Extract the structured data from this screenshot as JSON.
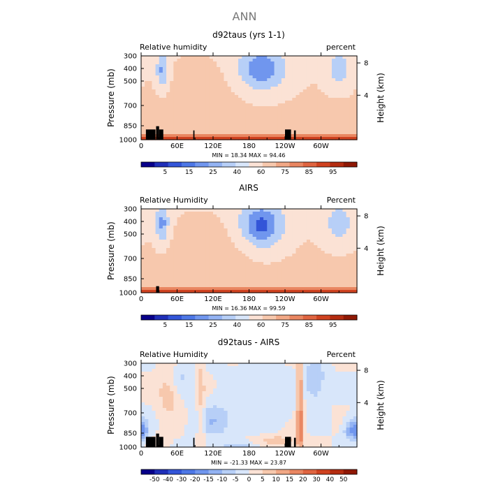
{
  "page_title": "ANN",
  "chart_data": [
    {
      "type": "heatmap",
      "title": "d92taus (yrs 1-1)",
      "left_label": "Relative humidity",
      "right_label": "percent",
      "ylabel": "Pressure (mb)",
      "y2label": "Height (km)",
      "pressure_ticks": [
        "300",
        "400",
        "500",
        "700",
        "850",
        "1000"
      ],
      "height_ticks": [
        "8",
        "4"
      ],
      "lon_ticks": [
        "0",
        "60E",
        "120E",
        "180",
        "120W",
        "60W"
      ],
      "stats": "MIN =   18.34   MAX =   94.46",
      "colorbar_ticks": [
        "5",
        "15",
        "25",
        "40",
        "60",
        "75",
        "85",
        "95"
      ],
      "colorbar_colors": [
        "#08008a",
        "#1f2fb8",
        "#3355d8",
        "#4d77e6",
        "#7096ee",
        "#93b3f3",
        "#b7cff7",
        "#d8e6fa",
        "#fbe2d5",
        "#f7c8ad",
        "#f1a886",
        "#e98661",
        "#df6440",
        "#cf4220",
        "#b42c10",
        "#8f1805"
      ],
      "range": [
        18.34,
        94.46
      ],
      "features": [
        {
          "lon": 35,
          "p": 420,
          "amp": -38,
          "wlon": 8,
          "wp": 110
        },
        {
          "lon": 200,
          "p": 410,
          "amp": -45,
          "wlon": 32,
          "wp": 140
        },
        {
          "lon": 330,
          "p": 410,
          "amp": -30,
          "wlon": 16,
          "wp": 110
        },
        {
          "lon": 110,
          "p": 560,
          "amp": 8,
          "wlon": 45,
          "wp": 180
        }
      ],
      "land_blocks": [
        [
          8,
          24,
          890
        ],
        [
          25,
          30,
          855
        ],
        [
          30,
          37,
          890
        ],
        [
          87,
          89,
          900
        ],
        [
          240,
          250,
          890
        ],
        [
          255,
          258,
          900
        ]
      ]
    },
    {
      "type": "heatmap",
      "title": "AIRS",
      "left_label": "Relative Humidity",
      "right_label": "Percent",
      "ylabel": "Pressure (mb)",
      "y2label": "Height (km)",
      "pressure_ticks": [
        "300",
        "400",
        "500",
        "700",
        "850",
        "1000"
      ],
      "height_ticks": [
        "8",
        "4"
      ],
      "lon_ticks": [
        "0",
        "60E",
        "120E",
        "180",
        "120W",
        "60W"
      ],
      "stats": "MIN =   16.36   MAX =   99.59",
      "colorbar_ticks": [
        "5",
        "15",
        "25",
        "40",
        "60",
        "75",
        "85",
        "95"
      ],
      "colorbar_colors": [
        "#08008a",
        "#1f2fb8",
        "#3355d8",
        "#4d77e6",
        "#7096ee",
        "#93b3f3",
        "#b7cff7",
        "#d8e6fa",
        "#fbe2d5",
        "#f7c8ad",
        "#f1a886",
        "#e98661",
        "#df6440",
        "#cf4220",
        "#b42c10",
        "#8f1805"
      ],
      "range": [
        16.36,
        99.59
      ],
      "features": [
        {
          "lon": 35,
          "p": 420,
          "amp": -40,
          "wlon": 9,
          "wp": 120
        },
        {
          "lon": 200,
          "p": 440,
          "amp": -50,
          "wlon": 30,
          "wp": 150
        },
        {
          "lon": 330,
          "p": 420,
          "amp": -28,
          "wlon": 20,
          "wp": 130
        },
        {
          "lon": 130,
          "p": 620,
          "amp": 10,
          "wlon": 50,
          "wp": 180
        }
      ],
      "land_blocks": [
        [
          25,
          30,
          930
        ]
      ]
    },
    {
      "type": "heatmap",
      "title": "d92taus - AIRS",
      "left_label": "Relative Humidity",
      "right_label": "Percent",
      "ylabel": "Pressure (mb)",
      "y2label": "Height (km)",
      "pressure_ticks": [
        "300",
        "400",
        "500",
        "700",
        "850",
        "1000"
      ],
      "height_ticks": [
        "8",
        "4"
      ],
      "lon_ticks": [
        "0",
        "60E",
        "120E",
        "180",
        "120W",
        "60W"
      ],
      "stats": "MIN =  -21.33   MAX =   23.87",
      "colorbar_ticks": [
        "-50",
        "-40",
        "-30",
        "-20",
        "-15",
        "-10",
        "-5",
        "0",
        "5",
        "10",
        "15",
        "20",
        "30",
        "40",
        "50"
      ],
      "colorbar_colors": [
        "#08008a",
        "#1f2fb8",
        "#3355d8",
        "#4d77e6",
        "#7096ee",
        "#93b3f3",
        "#b7cff7",
        "#d8e6fa",
        "#fbe2d5",
        "#f7c8ad",
        "#f1a886",
        "#e98661",
        "#df6440",
        "#cf4220",
        "#b42c10",
        "#8f1805"
      ],
      "range": [
        -21.33,
        23.87
      ],
      "features": [
        {
          "lon": 265,
          "p": 700,
          "amp": 18,
          "wlon": 4,
          "wp": 400
        },
        {
          "lon": 100,
          "p": 650,
          "amp": 8,
          "wlon": 5,
          "wp": 350
        },
        {
          "lon": 45,
          "p": 500,
          "amp": 8,
          "wlon": 12,
          "wp": 200
        },
        {
          "lon": 60,
          "p": 400,
          "amp": -7,
          "wlon": 15,
          "wp": 80
        },
        {
          "lon": 120,
          "p": 760,
          "amp": -9,
          "wlon": 22,
          "wp": 90
        },
        {
          "lon": 200,
          "p": 560,
          "amp": -5,
          "wlon": 40,
          "wp": 150
        },
        {
          "lon": 290,
          "p": 430,
          "amp": -10,
          "wlon": 12,
          "wp": 120
        },
        {
          "lon": 350,
          "p": 830,
          "amp": -15,
          "wlon": 8,
          "wp": 60
        },
        {
          "lon": 3,
          "p": 830,
          "amp": -15,
          "wlon": 6,
          "wp": 60
        },
        {
          "lon": 230,
          "p": 930,
          "amp": 8,
          "wlon": 25,
          "wp": 40
        },
        {
          "lon": 160,
          "p": 990,
          "amp": -6,
          "wlon": 30,
          "wp": 30
        }
      ],
      "land_blocks": [
        [
          8,
          24,
          890
        ],
        [
          25,
          30,
          855
        ],
        [
          30,
          37,
          890
        ],
        [
          87,
          89,
          900
        ],
        [
          240,
          250,
          890
        ],
        [
          255,
          258,
          900
        ]
      ]
    }
  ]
}
